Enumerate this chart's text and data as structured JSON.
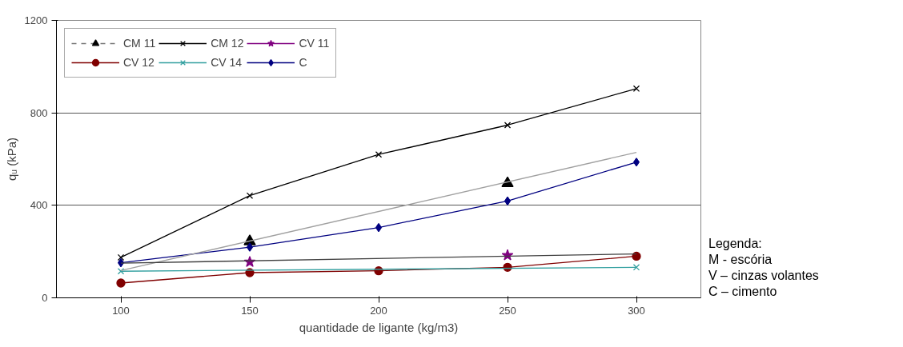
{
  "chart_data": {
    "type": "line",
    "xlabel": "quantidade de ligante (kg/m3)",
    "ylabel": "qᵤ (kPa)",
    "categories": [
      "100",
      "150",
      "200",
      "250",
      "300"
    ],
    "ylim": [
      0,
      1200
    ],
    "yticks": [
      0,
      400,
      800,
      1200
    ],
    "grid": "y",
    "legend": "top left",
    "series": [
      {
        "name": "CM 11",
        "type": "scatter",
        "marker": "triangle",
        "line_style": "dashed",
        "color": "#000000",
        "values": [
          null,
          244,
          null,
          495,
          null
        ]
      },
      {
        "name": "CM 12",
        "marker": "cross",
        "color": "#000000",
        "values": [
          175,
          442,
          620,
          747,
          905
        ]
      },
      {
        "name": "CV 11",
        "type": "scatter",
        "marker": "star",
        "color": "#800080",
        "values": [
          null,
          155,
          null,
          184,
          null
        ]
      },
      {
        "name": "CV 12",
        "marker": "circle",
        "color": "#800000",
        "values": [
          64,
          109,
          117,
          132,
          180
        ]
      },
      {
        "name": "CV 14",
        "marker": "cross",
        "color": "#33a0a0",
        "x": [
          "100",
          "300"
        ],
        "values": [
          115,
          132
        ]
      },
      {
        "name": "C",
        "marker": "diamond",
        "color": "#000080",
        "values": [
          152,
          219,
          304,
          419,
          587
        ]
      },
      {
        "marker": "none",
        "color": "#a0a0a0",
        "x": [
          "100",
          "300"
        ],
        "values": [
          118,
          629
        ]
      },
      {
        "marker": "none",
        "color": "#404040",
        "x": [
          "100",
          "300"
        ],
        "values": [
          150,
          190
        ]
      }
    ],
    "annotations": [
      "Legenda:",
      "M - escória",
      "V – cinzas volantes",
      "C – cimento"
    ]
  }
}
